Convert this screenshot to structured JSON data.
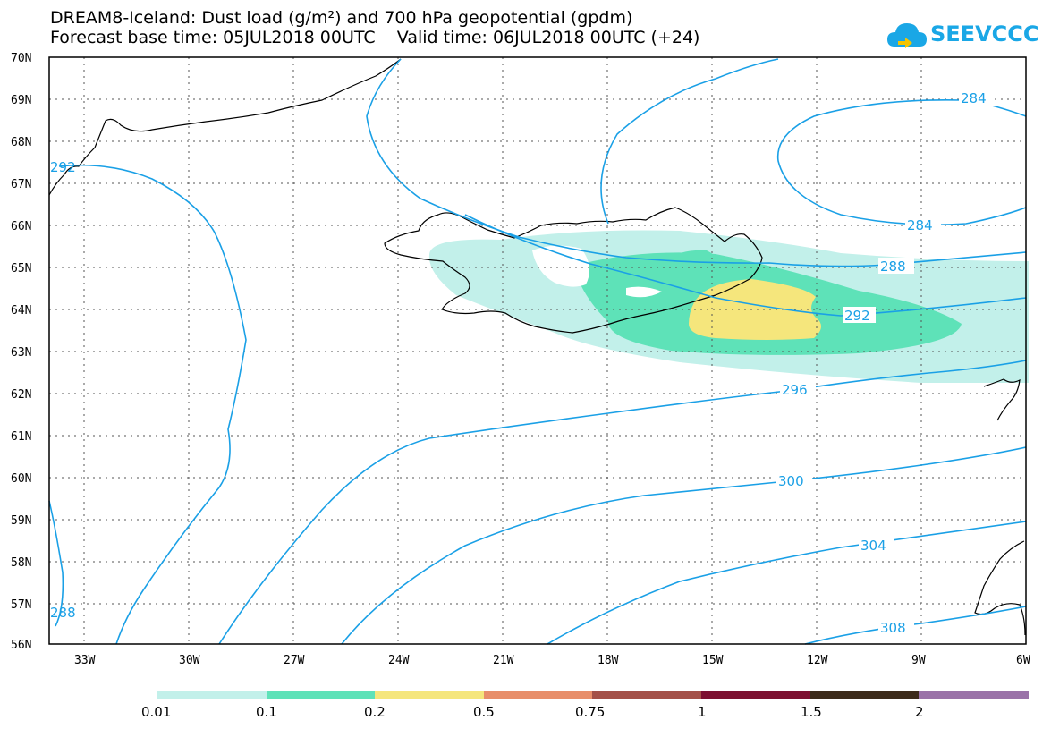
{
  "header": {
    "title_line1": "DREAM8-Iceland: Dust load (g/m²) and 700 hPa geopotential (gpdm)",
    "title_line2": "Forecast base time: 05JUL2018 00UTC    Valid time: 06JUL2018 00UTC (+24)",
    "logo_text": "SEEVCCC",
    "logo_color": "#1aa7e6"
  },
  "map": {
    "lat_labels": [
      "70N",
      "69N",
      "68N",
      "67N",
      "66N",
      "65N",
      "64N",
      "63N",
      "62N",
      "61N",
      "60N",
      "59N",
      "58N",
      "57N",
      "56N"
    ],
    "lon_labels": [
      "33W",
      "30W",
      "27W",
      "24W",
      "21W",
      "18W",
      "15W",
      "12W",
      "9W",
      "6W"
    ],
    "contour_color": "#1aa0e6",
    "contour_labels": [
      "284",
      "284",
      "288",
      "292",
      "296",
      "300",
      "304",
      "308",
      "292",
      "288"
    ],
    "dust_colors": {
      "c001": "#c2f0ea",
      "c01": "#5ee2b8",
      "c02": "#f5e67c"
    }
  },
  "legend": {
    "colors": [
      "#c2f0ea",
      "#5ee2b8",
      "#f5e67c",
      "#e88e6a",
      "#a45048",
      "#7c0f30",
      "#3c2a1a",
      "#9a72a8"
    ],
    "labels": [
      "0.01",
      "0.1",
      "0.2",
      "0.5",
      "0.75",
      "1",
      "1.5",
      "2"
    ]
  }
}
